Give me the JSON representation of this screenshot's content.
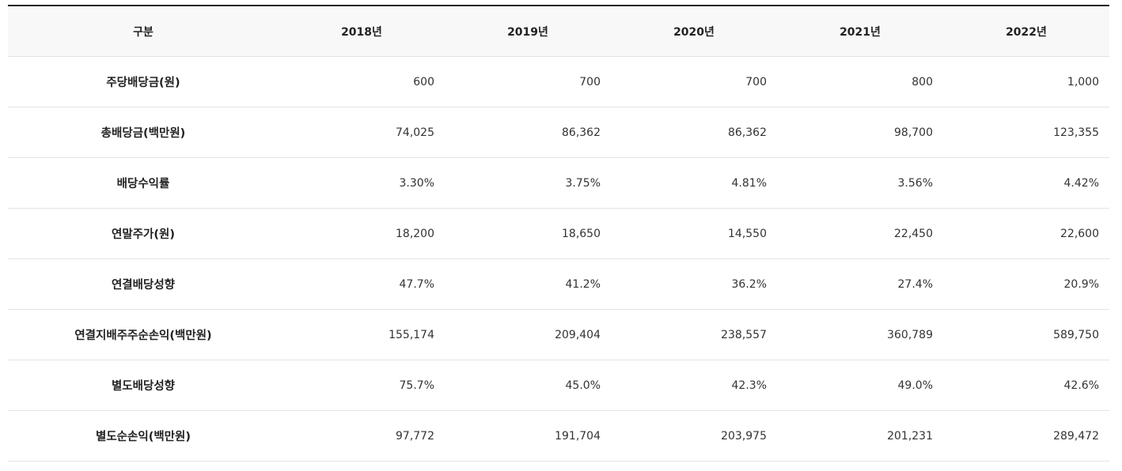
{
  "table": {
    "header": [
      "구분",
      "2018년",
      "2019년",
      "2020년",
      "2021년",
      "2022년"
    ],
    "rows": [
      [
        "주당배당금(원)",
        "600",
        "700",
        "700",
        "800",
        "1,000"
      ],
      [
        "총배당금(백만원)",
        "74,025",
        "86,362",
        "86,362",
        "98,700",
        "123,355"
      ],
      [
        "배당수익률",
        "3.30%",
        "3.75%",
        "4.81%",
        "3.56%",
        "4.42%"
      ],
      [
        "연말주가(원)",
        "18,200",
        "18,650",
        "14,550",
        "22,450",
        "22,600"
      ],
      [
        "연결배당성향",
        "47.7%",
        "41.2%",
        "36.2%",
        "27.4%",
        "20.9%"
      ],
      [
        "연결지배주주순손익(백만원)",
        "155,174",
        "209,404",
        "238,557",
        "360,789",
        "589,750"
      ],
      [
        "별도배당성향",
        "75.7%",
        "45.0%",
        "42.3%",
        "49.0%",
        "42.6%"
      ],
      [
        "별도순손익(백만원)",
        "97,772",
        "191,704",
        "203,975",
        "201,231",
        "289,472"
      ]
    ]
  }
}
